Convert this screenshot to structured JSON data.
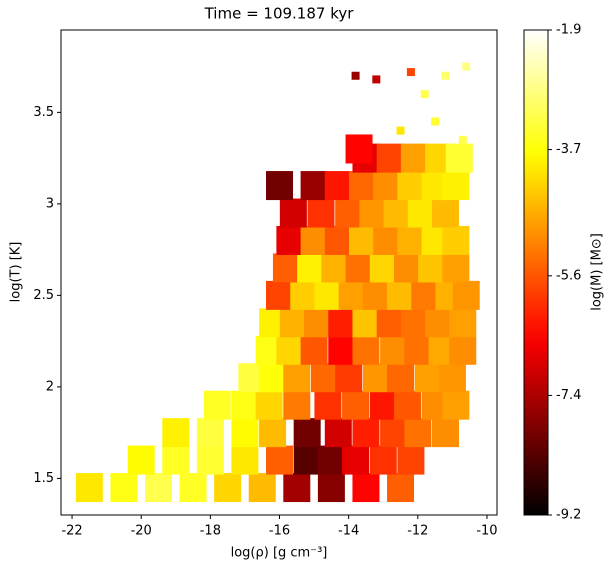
{
  "chart_data": {
    "type": "scatter",
    "title": "Time = 109.187 kyr",
    "x_label": "log(ρ) [g cm⁻³]",
    "y_label": "log(T) [K]",
    "colorbar_label": "log(M) [M⊙]",
    "colormap": "hot",
    "xlim": [
      -22.32,
      -9.71
    ],
    "ylim": [
      1.3,
      3.95
    ],
    "clim": [
      -9.2,
      -1.9
    ],
    "xticks": [
      -22,
      -20,
      -18,
      -16,
      -14,
      -12,
      -10
    ],
    "yticks": [
      1.5,
      2.0,
      2.5,
      3.0,
      3.5
    ],
    "cticks": [
      -9.2,
      -7.4,
      -5.6,
      -3.7,
      -1.9
    ],
    "x": [
      -21.5,
      -20.5,
      -19.5,
      -18.5,
      -17.5,
      -16.5,
      -15.5,
      -14.5,
      -13.5,
      -12.5,
      -20,
      -19,
      -18,
      -17,
      -16,
      -15.2,
      -14.5,
      -13.8,
      -13,
      -12.2,
      -19,
      -18,
      -17,
      -16.2,
      -15.2,
      -14.3,
      -13.5,
      -12.7,
      -12,
      -11.2,
      -17.8,
      -17,
      -16.3,
      -15.5,
      -14.6,
      -13.8,
      -13,
      -12.3,
      -11.5,
      -10.9,
      -16.8,
      -16.2,
      -15.5,
      -14.7,
      -14,
      -13.2,
      -12.5,
      -11.7,
      -11,
      -16.3,
      -15.7,
      -15,
      -14.2,
      -13.5,
      -12.7,
      -12,
      -11.3,
      -10.7,
      -16.2,
      -15.6,
      -14.9,
      -14.2,
      -13.5,
      -12.8,
      -12.1,
      -11.4,
      -10.7,
      -16,
      -15.3,
      -14.6,
      -13.9,
      -13.2,
      -12.5,
      -11.8,
      -11.1,
      -10.6,
      -15.8,
      -15.1,
      -14.4,
      -13.7,
      -13,
      -12.3,
      -11.6,
      -10.9,
      -15.7,
      -15,
      -14.3,
      -13.6,
      -12.9,
      -12.2,
      -11.5,
      -10.9,
      -15.6,
      -14.8,
      -14,
      -13.3,
      -12.6,
      -11.9,
      -11.2,
      -15,
      -14.3,
      -13.6,
      -12.9,
      -12.2,
      -11.5,
      -10.9,
      -13.5,
      -12.8,
      -12.1,
      -11.4,
      -10.8,
      -12.5,
      -11.5,
      -11.8,
      -11.2,
      -12.2,
      -13.2,
      -13.8,
      -10.6,
      -10.7,
      -13.7,
      -16
    ],
    "y": [
      1.45,
      1.45,
      1.45,
      1.45,
      1.45,
      1.45,
      1.45,
      1.45,
      1.45,
      1.45,
      1.6,
      1.6,
      1.6,
      1.6,
      1.6,
      1.6,
      1.6,
      1.6,
      1.6,
      1.6,
      1.75,
      1.75,
      1.75,
      1.75,
      1.75,
      1.75,
      1.75,
      1.75,
      1.75,
      1.75,
      1.9,
      1.9,
      1.9,
      1.9,
      1.9,
      1.9,
      1.9,
      1.9,
      1.9,
      1.9,
      2.05,
      2.05,
      2.05,
      2.05,
      2.05,
      2.05,
      2.05,
      2.05,
      2.05,
      2.2,
      2.2,
      2.2,
      2.2,
      2.2,
      2.2,
      2.2,
      2.2,
      2.2,
      2.35,
      2.35,
      2.35,
      2.35,
      2.35,
      2.35,
      2.35,
      2.35,
      2.35,
      2.5,
      2.5,
      2.5,
      2.5,
      2.5,
      2.5,
      2.5,
      2.5,
      2.5,
      2.65,
      2.65,
      2.65,
      2.65,
      2.65,
      2.65,
      2.65,
      2.65,
      2.8,
      2.8,
      2.8,
      2.8,
      2.8,
      2.8,
      2.8,
      2.8,
      2.95,
      2.95,
      2.95,
      2.95,
      2.95,
      2.95,
      2.95,
      3.1,
      3.1,
      3.1,
      3.1,
      3.1,
      3.1,
      3.1,
      3.25,
      3.25,
      3.25,
      3.25,
      3.25,
      3.4,
      3.45,
      3.6,
      3.7,
      3.72,
      3.68,
      3.7,
      3.75,
      3.35,
      3.3,
      3.1
    ],
    "c": [
      -4.0,
      -3.6,
      -3.2,
      -3.5,
      -4.2,
      -4.5,
      -7.5,
      -7.8,
      -6.5,
      -5.5,
      -3.8,
      -3.5,
      -3.4,
      -4.0,
      -5.5,
      -8.3,
      -8.0,
      -6.8,
      -6.0,
      -5.8,
      -3.9,
      -3.3,
      -3.8,
      -4.5,
      -8.0,
      -7.0,
      -6.2,
      -5.8,
      -5.3,
      -5.0,
      -3.5,
      -3.6,
      -4.2,
      -5.2,
      -6.0,
      -5.5,
      -6.3,
      -5.6,
      -5.0,
      -4.8,
      -3.3,
      -3.7,
      -4.8,
      -5.4,
      -5.9,
      -4.9,
      -5.4,
      -4.8,
      -4.9,
      -3.6,
      -4.2,
      -5.6,
      -6.5,
      -5.3,
      -5.0,
      -5.3,
      -4.7,
      -5.0,
      -3.9,
      -4.6,
      -5.0,
      -6.2,
      -4.4,
      -5.5,
      -5.3,
      -5.0,
      -4.8,
      -5.8,
      -4.3,
      -4.0,
      -4.8,
      -5.0,
      -4.5,
      -5.2,
      -4.6,
      -4.9,
      -5.5,
      -3.9,
      -4.6,
      -5.3,
      -4.2,
      -5.0,
      -4.4,
      -4.8,
      -6.8,
      -5.0,
      -5.6,
      -4.5,
      -5.0,
      -4.6,
      -4.0,
      -4.3,
      -7.0,
      -6.0,
      -5.5,
      -4.9,
      -4.5,
      -4.0,
      -4.5,
      -7.6,
      -6.3,
      -5.4,
      -5.0,
      -4.3,
      -4.0,
      -3.9,
      -6.8,
      -5.8,
      -4.8,
      -4.2,
      -3.4,
      -4.0,
      -3.4,
      -3.2,
      -3.0,
      -5.8,
      -7.2,
      -7.6,
      -2.8,
      -3.2,
      -6.5,
      -8.0
    ]
  }
}
